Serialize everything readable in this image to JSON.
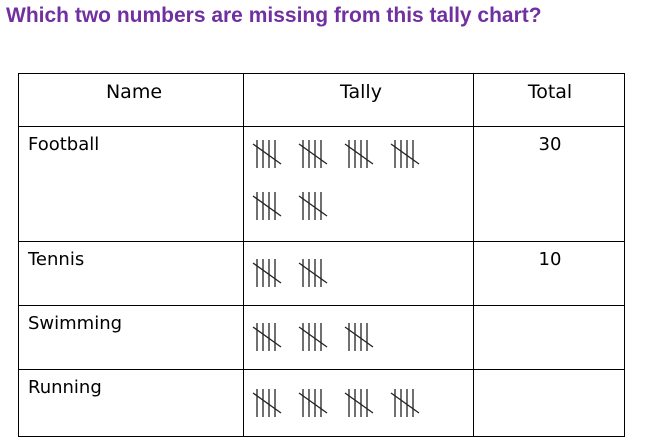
{
  "title": "Which two numbers are missing from this tally chart?",
  "table": {
    "headers": [
      "Name",
      "Tally",
      "Total"
    ],
    "rows": [
      {
        "name": "Football",
        "tally": 30,
        "total": 30
      },
      {
        "name": "Tennis",
        "tally": 10,
        "total": 10
      },
      {
        "name": "Swimming",
        "tally": 15
      },
      {
        "name": "Running",
        "tally": 20
      }
    ]
  }
}
